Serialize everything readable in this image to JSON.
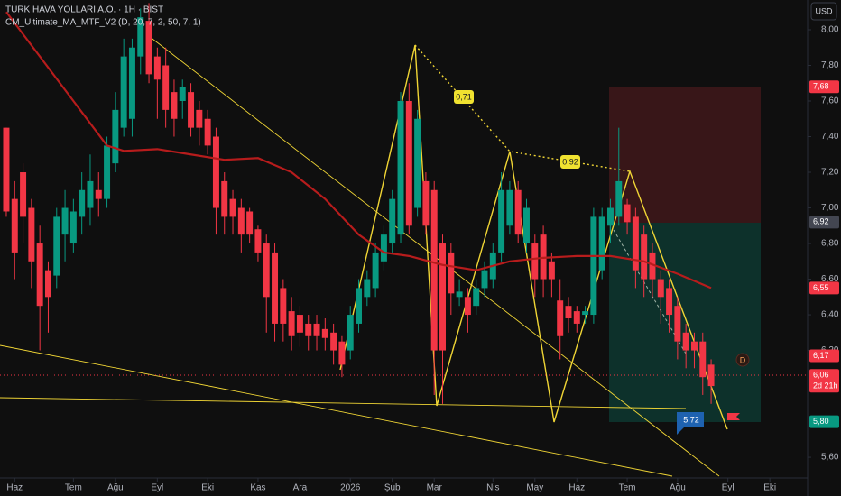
{
  "chart_data": {
    "type": "candlestick",
    "title": "TÜRK HAVA YOLLARI A.O. · 1H · BIST",
    "subtitle": "CM_Ultimate_MA_MTF_V2 (D, 20, 7, 2, 50, 7, 1)",
    "currency": "USD",
    "up_color": "#089981",
    "down_color": "#f23645",
    "xlim": [
      -0.75,
      95.5
    ],
    "ylim": [
      5.484,
      8.167
    ],
    "xticks": [
      {
        "value": 1,
        "label": "Haz"
      },
      {
        "value": 8,
        "label": "Tem"
      },
      {
        "value": 13,
        "label": "Ağu"
      },
      {
        "value": 18,
        "label": "Eyl"
      },
      {
        "value": 24,
        "label": "Eki"
      },
      {
        "value": 30,
        "label": "Kas"
      },
      {
        "value": 35,
        "label": "Ara"
      },
      {
        "value": 41,
        "label": "2026"
      },
      {
        "value": 46,
        "label": "Şub"
      },
      {
        "value": 51,
        "label": "Mar"
      },
      {
        "value": 58,
        "label": "Nis"
      },
      {
        "value": 63,
        "label": "May"
      },
      {
        "value": 68,
        "label": "Haz"
      },
      {
        "value": 74,
        "label": "Tem"
      },
      {
        "value": 80,
        "label": "Ağu"
      },
      {
        "value": 86,
        "label": "Eyl"
      },
      {
        "value": 91,
        "label": "Eki"
      }
    ],
    "yticks": [
      {
        "value": 8.0,
        "label": "8,00"
      },
      {
        "value": 7.8,
        "label": "7,80"
      },
      {
        "value": 7.6,
        "label": "7,60"
      },
      {
        "value": 7.4,
        "label": "7,40"
      },
      {
        "value": 7.2,
        "label": "7,20"
      },
      {
        "value": 7.0,
        "label": "7,00"
      },
      {
        "value": 6.8,
        "label": "6,80"
      },
      {
        "value": 6.6,
        "label": "6,60"
      },
      {
        "value": 6.4,
        "label": "6,40"
      },
      {
        "value": 6.2,
        "label": "6,20"
      },
      {
        "value": 5.6,
        "label": "5,60"
      }
    ],
    "open": [
      7.45,
      7.05,
      7.2,
      7.0,
      6.8,
      6.65,
      6.62,
      6.85,
      6.8,
      6.95,
      7.0,
      7.1,
      7.05,
      7.25,
      7.45,
      7.5,
      7.85,
      8.05,
      7.85,
      7.8,
      7.65,
      7.6,
      7.65,
      7.55,
      7.5,
      7.4,
      7.15,
      7.05,
      7.0,
      6.98,
      6.88,
      6.8,
      6.75,
      6.55,
      6.42,
      6.4,
      6.35,
      6.35,
      6.32,
      6.3,
      6.25,
      6.2,
      6.35,
      6.5,
      6.55,
      6.7,
      6.8,
      6.85,
      7.6,
      7.0,
      7.15,
      7.1,
      6.8,
      6.75,
      6.5,
      6.5,
      6.45,
      6.55,
      6.6,
      6.75,
      6.9,
      7.1,
      6.8,
      6.8,
      6.85,
      6.7,
      6.48,
      6.45,
      6.42,
      6.4,
      6.4,
      6.65,
      6.9,
      6.95,
      7.02,
      6.95,
      6.85,
      6.75,
      6.6,
      6.55,
      6.45,
      6.3,
      6.25,
      6.25,
      6.12
    ],
    "close": [
      6.98,
      6.75,
      6.95,
      6.7,
      6.45,
      6.5,
      6.95,
      7.0,
      6.98,
      7.1,
      7.15,
      7.05,
      7.35,
      7.55,
      7.85,
      7.9,
      8.07,
      7.75,
      7.72,
      7.55,
      7.5,
      7.68,
      7.45,
      7.45,
      7.35,
      7.0,
      6.95,
      6.95,
      6.85,
      6.85,
      6.75,
      6.5,
      6.35,
      6.35,
      6.28,
      6.3,
      6.28,
      6.28,
      6.27,
      6.2,
      6.12,
      6.4,
      6.55,
      6.6,
      6.75,
      6.85,
      7.05,
      7.6,
      6.9,
      7.5,
      6.9,
      6.2,
      6.2,
      6.52,
      6.53,
      6.4,
      6.55,
      6.65,
      6.75,
      7.1,
      7.1,
      6.85,
      7.0,
      6.6,
      6.6,
      6.6,
      6.28,
      6.38,
      6.35,
      6.42,
      6.95,
      6.95,
      7.0,
      7.15,
      6.92,
      6.65,
      6.6,
      6.6,
      6.5,
      6.4,
      6.25,
      6.2,
      6.2,
      6.05,
      6.0
    ],
    "high": [
      7.45,
      7.15,
      7.25,
      7.05,
      6.9,
      6.7,
      7.0,
      7.1,
      7.05,
      7.2,
      7.3,
      7.2,
      7.4,
      7.65,
      7.95,
      7.95,
      8.12,
      8.15,
      7.9,
      7.9,
      7.72,
      7.72,
      7.7,
      7.6,
      7.55,
      7.45,
      7.2,
      7.1,
      7.05,
      7.0,
      6.9,
      6.85,
      6.8,
      6.6,
      6.5,
      6.45,
      6.4,
      6.4,
      6.38,
      6.35,
      6.28,
      6.45,
      6.6,
      6.65,
      6.8,
      6.9,
      7.1,
      7.65,
      7.7,
      7.55,
      7.2,
      7.15,
      6.85,
      6.8,
      6.6,
      6.55,
      6.6,
      6.7,
      6.8,
      7.2,
      7.15,
      7.15,
      7.05,
      6.85,
      6.9,
      6.75,
      6.6,
      6.5,
      6.45,
      6.45,
      7.0,
      7.0,
      7.05,
      7.45,
      7.05,
      7.0,
      6.9,
      6.8,
      6.65,
      6.6,
      6.5,
      6.35,
      6.3,
      6.3,
      6.15
    ],
    "low": [
      6.95,
      6.6,
      6.8,
      6.55,
      6.2,
      6.3,
      6.55,
      6.7,
      6.75,
      6.85,
      6.9,
      6.95,
      7.0,
      7.2,
      7.4,
      7.4,
      7.75,
      7.7,
      7.5,
      7.45,
      7.4,
      7.5,
      7.4,
      7.35,
      7.3,
      6.85,
      6.85,
      6.85,
      6.75,
      6.8,
      6.7,
      6.3,
      6.25,
      6.25,
      6.2,
      6.22,
      6.2,
      6.2,
      6.2,
      6.12,
      6.05,
      6.15,
      6.3,
      6.45,
      6.5,
      6.65,
      6.75,
      6.8,
      6.85,
      6.95,
      6.85,
      5.95,
      5.9,
      6.4,
      6.45,
      6.3,
      6.4,
      6.5,
      6.55,
      6.7,
      6.85,
      6.8,
      6.75,
      6.5,
      6.5,
      6.5,
      6.15,
      6.3,
      6.3,
      6.35,
      6.35,
      6.6,
      6.8,
      6.9,
      6.85,
      6.55,
      6.5,
      6.5,
      6.35,
      6.3,
      6.15,
      6.1,
      6.1,
      5.95,
      5.9
    ],
    "ma": {
      "color": "#b71c1c",
      "x": [
        0,
        4,
        8,
        12,
        14,
        18,
        22,
        26,
        30,
        34,
        38,
        42,
        45,
        48,
        52,
        56,
        60,
        64,
        68,
        72,
        76,
        80,
        84
      ],
      "values": [
        8.1,
        7.85,
        7.6,
        7.35,
        7.32,
        7.33,
        7.3,
        7.27,
        7.28,
        7.2,
        7.05,
        6.85,
        6.75,
        6.73,
        6.68,
        6.65,
        6.7,
        6.72,
        6.73,
        6.73,
        6.7,
        6.63,
        6.55
      ]
    },
    "price_labels": [
      {
        "value": 7.68,
        "label": "7,68",
        "color": "#f23645"
      },
      {
        "value": 6.92,
        "label": "6,92",
        "color": "#434651"
      },
      {
        "value": 6.55,
        "label": "6,55",
        "color": "#f23645"
      },
      {
        "value": 6.17,
        "label": "6,17",
        "color": "#f23645"
      },
      {
        "value": 6.06,
        "label": "6,06",
        "color": "#f23645"
      },
      {
        "value": 5.8,
        "label": "5,80",
        "color": "#089981"
      }
    ],
    "countdown": "2d 21h",
    "annotations": [
      "0,71",
      "0,92",
      "5,72",
      "D"
    ]
  }
}
